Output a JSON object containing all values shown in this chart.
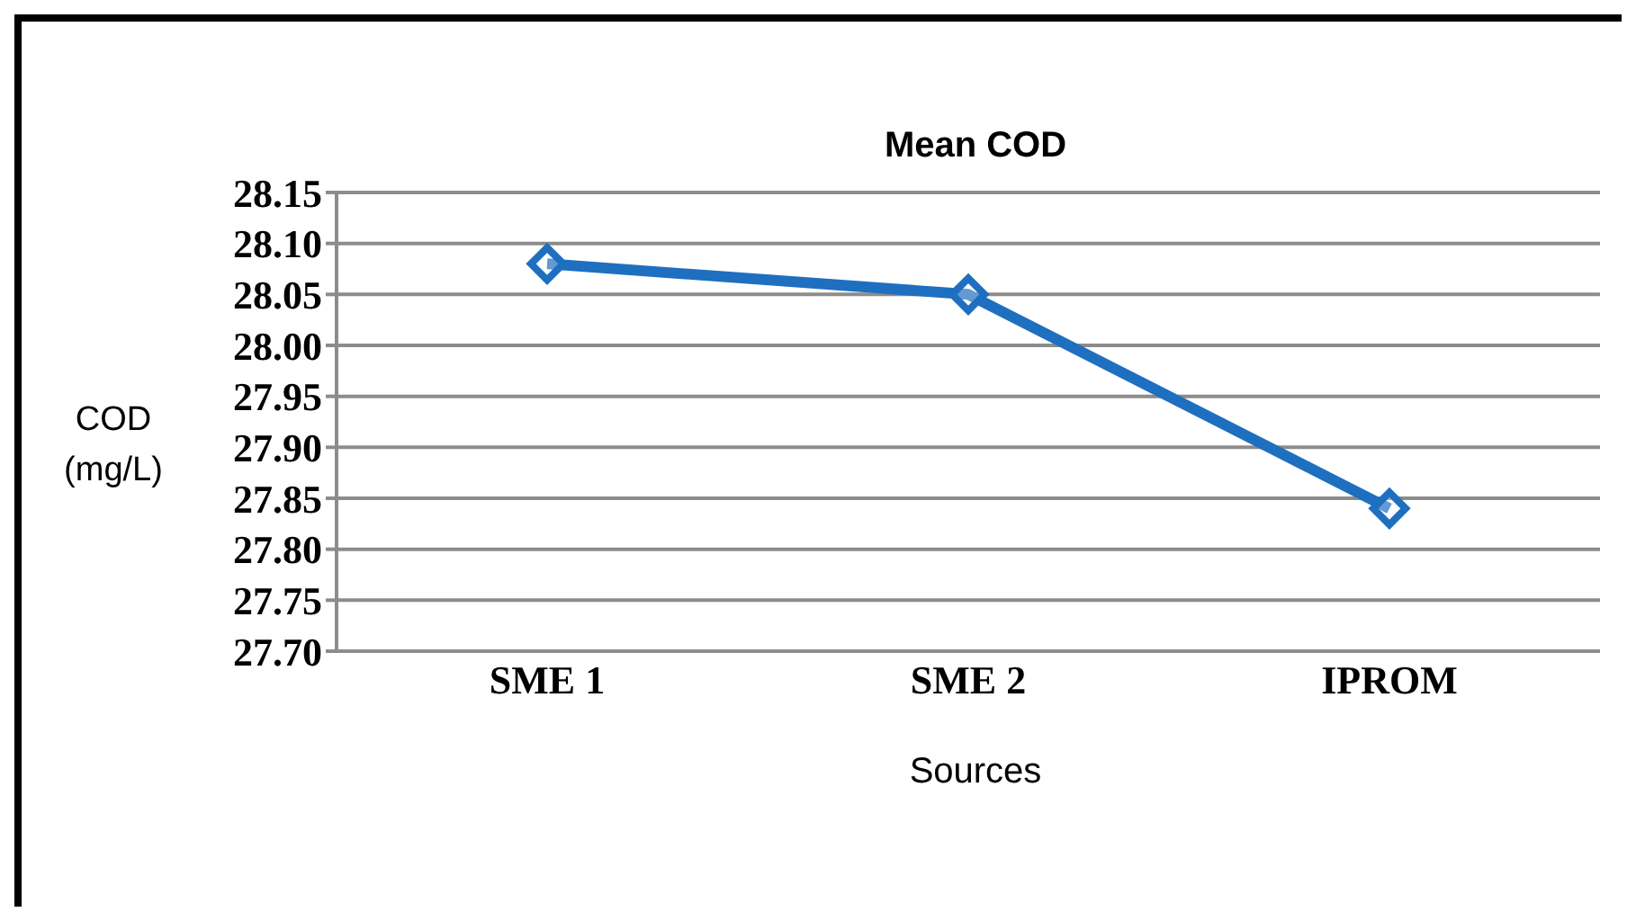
{
  "chart_data": {
    "type": "line",
    "title": "Mean COD",
    "xlabel": "Sources",
    "ylabel": "COD (mg/L)",
    "categories": [
      "SME 1",
      "SME 2",
      "IPROM"
    ],
    "series": [
      {
        "color": "#1f6fc0",
        "values": [
          28.08,
          28.05,
          27.84
        ]
      }
    ],
    "ylim": [
      27.7,
      28.15
    ],
    "yticks": [
      {
        "value": 27.7,
        "label": "27.70"
      },
      {
        "value": 27.75,
        "label": "27.75"
      },
      {
        "value": 27.8,
        "label": "27.80"
      },
      {
        "value": 27.85,
        "label": "27.85"
      },
      {
        "value": 27.9,
        "label": "27.90"
      },
      {
        "value": 27.95,
        "label": "27.95"
      },
      {
        "value": 28.0,
        "label": "28.00"
      },
      {
        "value": 28.05,
        "label": "28.05"
      },
      {
        "value": 28.1,
        "label": "28.10"
      },
      {
        "value": 28.15,
        "label": "28.15"
      }
    ],
    "grid": "y",
    "marker": "diamond",
    "line_style": "solid"
  }
}
